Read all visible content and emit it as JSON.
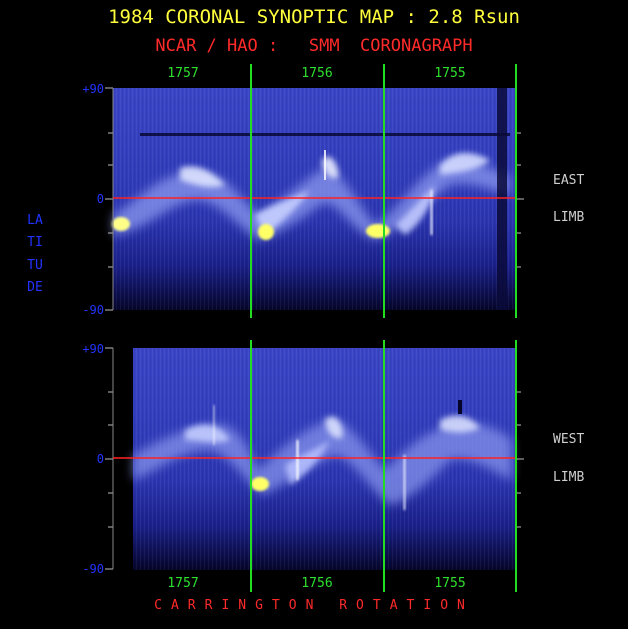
{
  "title": "1984 CORONAL SYNOPTIC MAP : 2.8 Rsun",
  "subtitle": "NCAR / HAO :   SMM  CORONAGRAPH",
  "rotations": [
    "1757",
    "1756",
    "1755"
  ],
  "latitude_ticks": [
    "+90",
    "0",
    "-90"
  ],
  "panels": [
    {
      "side_top": "EAST",
      "side_bottom": "LIMB"
    },
    {
      "side_top": "WEST",
      "side_bottom": "LIMB"
    }
  ],
  "y_axis_label": "LATITUDE",
  "x_axis_label": "CARRINGTON ROTATION",
  "colors": {
    "background": "#000000",
    "map_base": "#2a33b8",
    "map_dark": "#05052a",
    "streamer": "#c8d4ff",
    "hotspot": "#ffff66",
    "rotation_line": "#22dd22",
    "equator_line": "#ff2222",
    "axis_text": "#2233ff"
  }
}
